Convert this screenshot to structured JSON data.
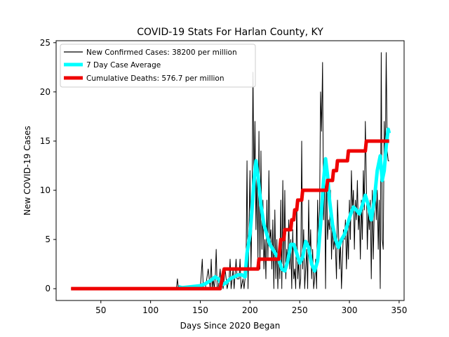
{
  "chart_data": {
    "type": "line",
    "title": "COVID-19 Stats For Harlan County, KY",
    "xlabel": "Days Since 2020 Began",
    "ylabel": "New COVID-19 Cases",
    "xlim": [
      5,
      355
    ],
    "ylim": [
      -1.2,
      25.2
    ],
    "xticks": [
      50,
      100,
      150,
      200,
      250,
      300,
      350
    ],
    "yticks": [
      0,
      5,
      10,
      15,
      20,
      25
    ],
    "grid": false,
    "legend_position": "top-left",
    "series": [
      {
        "name": "New Confirmed Cases: 38200 per million",
        "color": "#000000",
        "style": "thin",
        "points": [
          [
            20,
            0
          ],
          [
            100,
            0
          ],
          [
            126,
            0
          ],
          [
            127,
            1
          ],
          [
            128,
            0
          ],
          [
            150,
            0
          ],
          [
            152,
            3
          ],
          [
            153,
            0
          ],
          [
            155,
            0
          ],
          [
            158,
            2
          ],
          [
            160,
            0
          ],
          [
            161,
            3
          ],
          [
            162,
            0
          ],
          [
            163,
            1
          ],
          [
            164,
            0
          ],
          [
            165,
            1
          ],
          [
            166,
            4
          ],
          [
            167,
            0
          ],
          [
            168,
            0
          ],
          [
            170,
            2
          ],
          [
            171,
            0
          ],
          [
            172,
            1
          ],
          [
            173,
            0
          ],
          [
            175,
            2
          ],
          [
            176,
            1
          ],
          [
            177,
            0
          ],
          [
            179,
            1
          ],
          [
            180,
            3
          ],
          [
            181,
            0
          ],
          [
            183,
            2
          ],
          [
            184,
            0
          ],
          [
            186,
            3
          ],
          [
            187,
            1
          ],
          [
            189,
            1
          ],
          [
            190,
            3
          ],
          [
            191,
            0
          ],
          [
            193,
            1
          ],
          [
            194,
            0
          ],
          [
            196,
            2
          ],
          [
            197,
            13
          ],
          [
            198,
            0
          ],
          [
            200,
            12
          ],
          [
            201,
            2
          ],
          [
            202,
            8
          ],
          [
            203,
            22
          ],
          [
            204,
            10
          ],
          [
            205,
            17
          ],
          [
            206,
            6
          ],
          [
            207,
            12
          ],
          [
            208,
            3
          ],
          [
            209,
            16
          ],
          [
            210,
            2
          ],
          [
            211,
            14
          ],
          [
            212,
            4
          ],
          [
            213,
            9
          ],
          [
            214,
            2
          ],
          [
            215,
            5
          ],
          [
            216,
            1
          ],
          [
            217,
            9
          ],
          [
            218,
            3
          ],
          [
            219,
            12
          ],
          [
            220,
            5
          ],
          [
            221,
            6
          ],
          [
            222,
            2
          ],
          [
            223,
            7
          ],
          [
            224,
            0
          ],
          [
            225,
            8
          ],
          [
            226,
            1
          ],
          [
            227,
            5
          ],
          [
            228,
            0
          ],
          [
            229,
            4
          ],
          [
            230,
            1
          ],
          [
            231,
            9
          ],
          [
            232,
            0
          ],
          [
            233,
            11
          ],
          [
            234,
            2
          ],
          [
            235,
            10
          ],
          [
            236,
            1
          ],
          [
            237,
            4
          ],
          [
            238,
            3
          ],
          [
            239,
            7
          ],
          [
            240,
            2
          ],
          [
            241,
            5
          ],
          [
            242,
            0
          ],
          [
            243,
            6
          ],
          [
            244,
            1
          ],
          [
            245,
            2
          ],
          [
            246,
            0
          ],
          [
            247,
            9
          ],
          [
            248,
            1
          ],
          [
            249,
            3
          ],
          [
            250,
            0
          ],
          [
            251,
            1
          ],
          [
            252,
            15
          ],
          [
            253,
            2
          ],
          [
            254,
            6
          ],
          [
            255,
            0
          ],
          [
            256,
            2
          ],
          [
            257,
            4
          ],
          [
            258,
            0
          ],
          [
            259,
            9
          ],
          [
            260,
            3
          ],
          [
            261,
            6
          ],
          [
            262,
            1
          ],
          [
            263,
            4
          ],
          [
            264,
            0
          ],
          [
            265,
            1
          ],
          [
            266,
            3
          ],
          [
            267,
            0
          ],
          [
            268,
            9
          ],
          [
            269,
            5
          ],
          [
            270,
            8
          ],
          [
            271,
            20
          ],
          [
            272,
            16
          ],
          [
            273,
            23
          ],
          [
            274,
            7
          ],
          [
            275,
            13
          ],
          [
            276,
            0
          ],
          [
            277,
            12
          ],
          [
            278,
            5
          ],
          [
            279,
            7
          ],
          [
            280,
            6
          ],
          [
            281,
            10
          ],
          [
            282,
            3
          ],
          [
            283,
            7
          ],
          [
            284,
            4
          ],
          [
            285,
            5
          ],
          [
            286,
            4
          ],
          [
            287,
            1
          ],
          [
            288,
            9
          ],
          [
            289,
            6
          ],
          [
            290,
            2
          ],
          [
            291,
            5
          ],
          [
            292,
            0
          ],
          [
            293,
            3
          ],
          [
            294,
            6
          ],
          [
            295,
            5
          ],
          [
            296,
            7
          ],
          [
            297,
            2
          ],
          [
            298,
            6
          ],
          [
            299,
            3
          ],
          [
            300,
            9
          ],
          [
            301,
            5
          ],
          [
            302,
            12
          ],
          [
            303,
            8
          ],
          [
            304,
            10
          ],
          [
            305,
            4
          ],
          [
            306,
            9
          ],
          [
            307,
            7
          ],
          [
            308,
            11
          ],
          [
            309,
            6
          ],
          [
            310,
            8
          ],
          [
            311,
            3
          ],
          [
            312,
            9
          ],
          [
            313,
            5
          ],
          [
            314,
            12
          ],
          [
            315,
            8
          ],
          [
            316,
            17
          ],
          [
            317,
            11
          ],
          [
            318,
            4
          ],
          [
            319,
            8
          ],
          [
            320,
            6
          ],
          [
            321,
            9
          ],
          [
            322,
            1
          ],
          [
            323,
            10
          ],
          [
            324,
            3
          ],
          [
            325,
            8
          ],
          [
            326,
            11
          ],
          [
            327,
            7
          ],
          [
            328,
            10
          ],
          [
            329,
            4
          ],
          [
            330,
            9
          ],
          [
            331,
            0
          ],
          [
            332,
            24
          ],
          [
            333,
            5
          ],
          [
            334,
            4
          ],
          [
            335,
            17
          ],
          [
            336,
            12
          ],
          [
            337,
            24
          ],
          [
            338,
            14
          ],
          [
            339,
            13
          ],
          [
            340,
            13
          ]
        ]
      },
      {
        "name": "7 Day Case Average",
        "color": "#00ffff",
        "style": "thick",
        "points": [
          [
            128,
            0.2
          ],
          [
            132,
            0.1
          ],
          [
            150,
            0.3
          ],
          [
            155,
            0.5
          ],
          [
            160,
            0.8
          ],
          [
            165,
            1.2
          ],
          [
            168,
            1.0
          ],
          [
            172,
            0.4
          ],
          [
            176,
            0.6
          ],
          [
            180,
            1.0
          ],
          [
            184,
            1.2
          ],
          [
            188,
            1.4
          ],
          [
            192,
            1.4
          ],
          [
            195,
            1.2
          ],
          [
            197,
            3.6
          ],
          [
            200,
            5.5
          ],
          [
            202,
            8.0
          ],
          [
            204,
            11.0
          ],
          [
            206,
            13.0
          ],
          [
            208,
            11.5
          ],
          [
            211,
            8.5
          ],
          [
            214,
            6.5
          ],
          [
            217,
            5.5
          ],
          [
            220,
            4.5
          ],
          [
            223,
            4.0
          ],
          [
            226,
            3.5
          ],
          [
            229,
            3.0
          ],
          [
            232,
            2.0
          ],
          [
            235,
            1.8
          ],
          [
            238,
            2.8
          ],
          [
            241,
            4.5
          ],
          [
            244,
            4.5
          ],
          [
            247,
            3.6
          ],
          [
            250,
            2.6
          ],
          [
            253,
            3.2
          ],
          [
            256,
            4.8
          ],
          [
            259,
            4.2
          ],
          [
            262,
            2.5
          ],
          [
            265,
            1.8
          ],
          [
            268,
            2.8
          ],
          [
            271,
            6.5
          ],
          [
            274,
            11.0
          ],
          [
            276,
            13.2
          ],
          [
            278,
            11.5
          ],
          [
            280,
            9.0
          ],
          [
            283,
            6.5
          ],
          [
            286,
            5.0
          ],
          [
            289,
            4.2
          ],
          [
            292,
            5.0
          ],
          [
            295,
            5.5
          ],
          [
            298,
            6.5
          ],
          [
            301,
            7.5
          ],
          [
            304,
            8.3
          ],
          [
            307,
            8.0
          ],
          [
            310,
            7.6
          ],
          [
            313,
            8.5
          ],
          [
            316,
            9.5
          ],
          [
            319,
            8.5
          ],
          [
            322,
            7.0
          ],
          [
            325,
            9.0
          ],
          [
            328,
            12.0
          ],
          [
            331,
            13.5
          ],
          [
            333,
            11.0
          ],
          [
            335,
            12.0
          ],
          [
            337,
            14.5
          ],
          [
            339,
            16.2
          ],
          [
            340,
            15.8
          ]
        ]
      },
      {
        "name": "Cumulative Deaths: 576.7 per million",
        "color": "#ee0000",
        "style": "thick-step",
        "points": [
          [
            20,
            0
          ],
          [
            170,
            0
          ],
          [
            172,
            1
          ],
          [
            174,
            2
          ],
          [
            199,
            2
          ],
          [
            200,
            2
          ],
          [
            208,
            2
          ],
          [
            209,
            3
          ],
          [
            229,
            3
          ],
          [
            231,
            5
          ],
          [
            234,
            5
          ],
          [
            235,
            6
          ],
          [
            241,
            6
          ],
          [
            242,
            7
          ],
          [
            244,
            7
          ],
          [
            245,
            8
          ],
          [
            247,
            8
          ],
          [
            248,
            9
          ],
          [
            252,
            9
          ],
          [
            253,
            10
          ],
          [
            277,
            10
          ],
          [
            278,
            11
          ],
          [
            283,
            11
          ],
          [
            284,
            12
          ],
          [
            287,
            12
          ],
          [
            288,
            13
          ],
          [
            298,
            13
          ],
          [
            299,
            14
          ],
          [
            316,
            14
          ],
          [
            317,
            15
          ],
          [
            340,
            15
          ]
        ]
      }
    ]
  }
}
